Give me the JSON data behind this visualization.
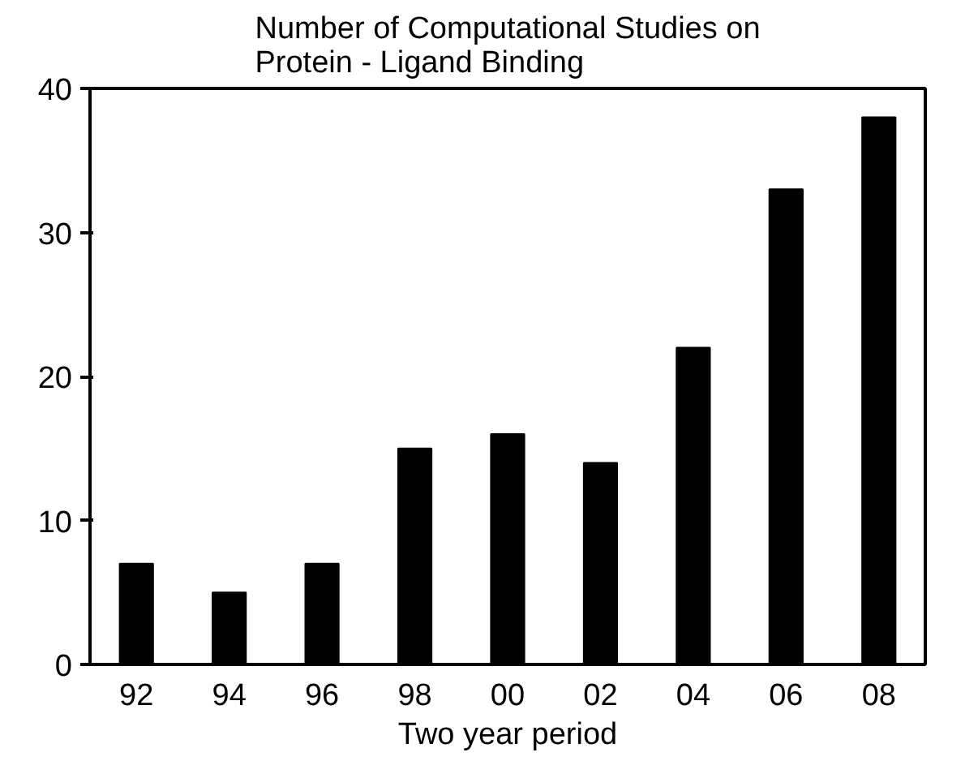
{
  "chart_data": {
    "type": "bar",
    "title": "Number of Computational Studies on\nProtein - Ligand Binding",
    "xlabel": "Two year period",
    "categories": [
      "92",
      "94",
      "96",
      "98",
      "00",
      "02",
      "04",
      "06",
      "08"
    ],
    "values": [
      7,
      5,
      7,
      15,
      16,
      14,
      22,
      33,
      38
    ],
    "color": "#000000",
    "ylim": [
      0,
      40
    ],
    "yticks": [
      0,
      10,
      20,
      30,
      40
    ],
    "grid": false
  }
}
